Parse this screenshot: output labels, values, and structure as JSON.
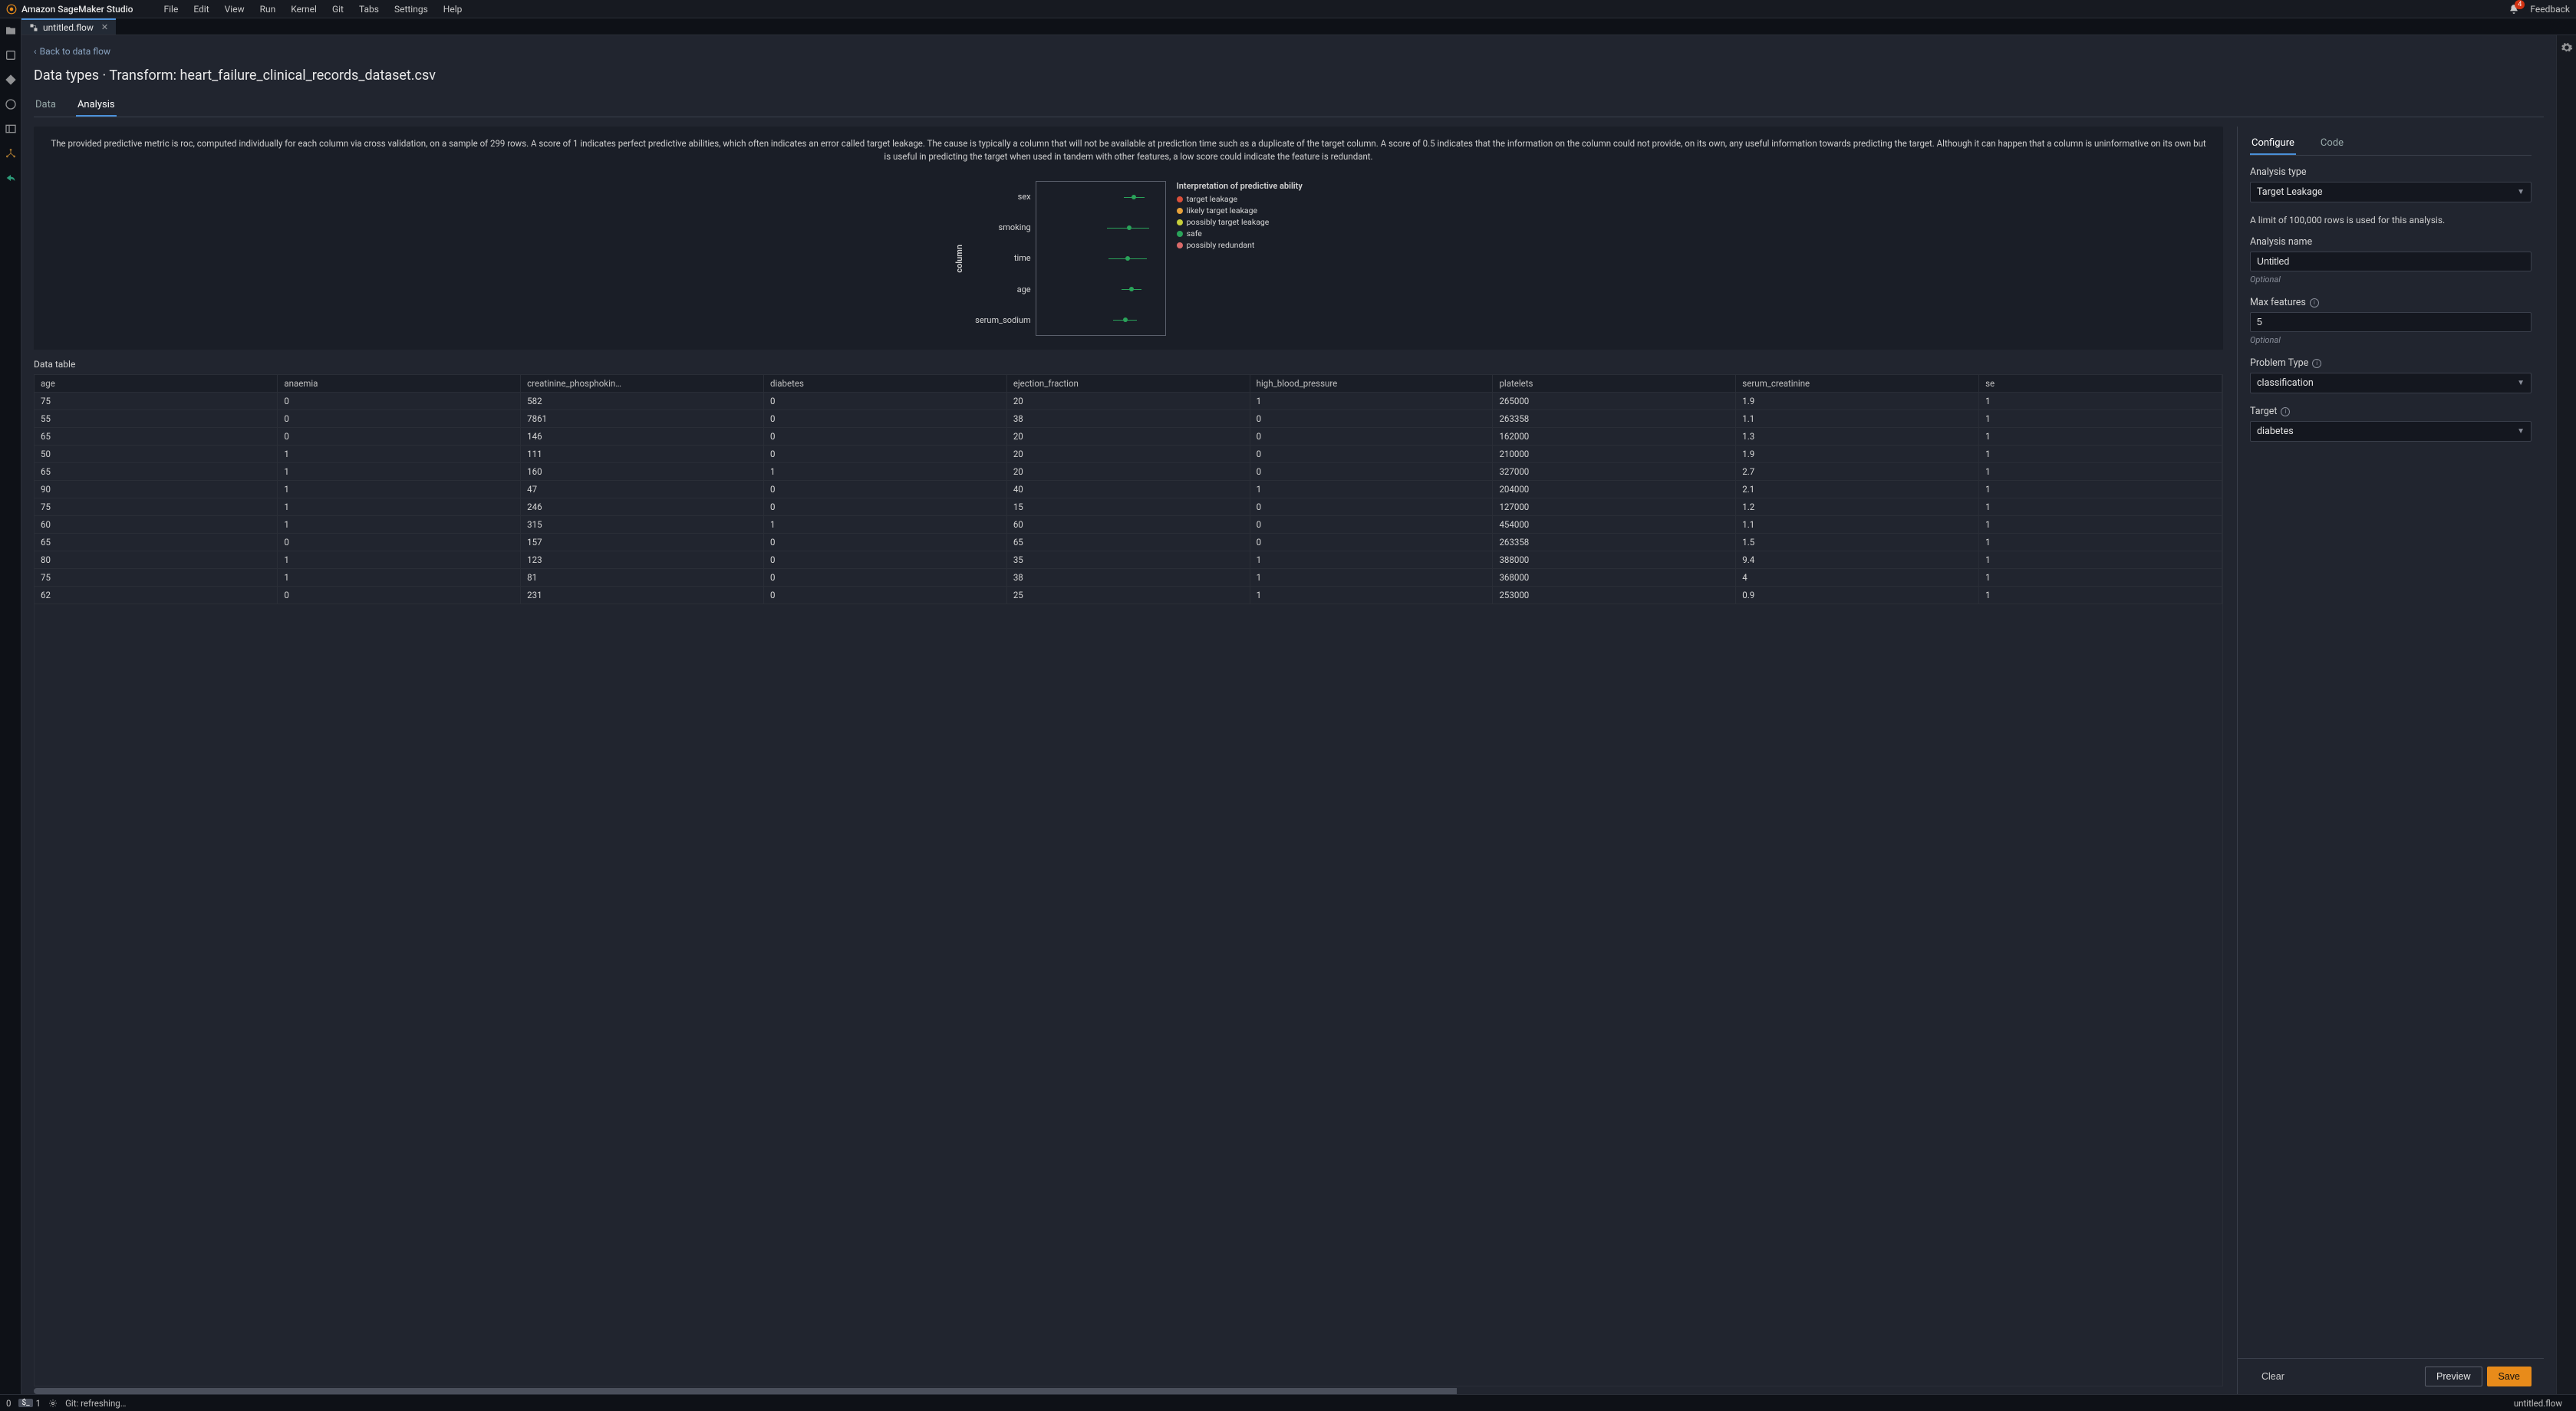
{
  "menubar": {
    "app_title": "Amazon SageMaker Studio",
    "items": [
      "File",
      "Edit",
      "View",
      "Run",
      "Kernel",
      "Git",
      "Tabs",
      "Settings",
      "Help"
    ],
    "notification_count": "4",
    "feedback": "Feedback"
  },
  "tab": {
    "title": "untitled.flow"
  },
  "back_link": "Back to data flow",
  "page": {
    "title_prefix": "Data types · Transform: ",
    "title_file": "heart_failure_clinical_records_dataset.csv"
  },
  "content_tabs": {
    "data": "Data",
    "analysis": "Analysis"
  },
  "description": "The provided predictive metric is roc, computed individually for each column via cross validation, on a sample of 299 rows. A score of 1 indicates perfect predictive abilities, which often indicates an error called target leakage. The cause is typically a column that will not be available at prediction time such as a duplicate of the target column. A score of 0.5 indicates that the information on the column could not provide, on its own, any useful information towards predicting the target. Although it can happen that a column is uninformative on its own but is useful in predicting the target when used in tandem with other features, a low score could indicate the feature is redundant.",
  "chart": {
    "y_axis_label": "column",
    "categories": [
      "sex",
      "smoking",
      "time",
      "age",
      "serum_sodium"
    ],
    "series": [
      {
        "center": 76,
        "low": 68,
        "high": 84,
        "color": "#2aa35a"
      },
      {
        "center": 72,
        "low": 55,
        "high": 88,
        "color": "#2aa35a"
      },
      {
        "center": 71,
        "low": 56,
        "high": 86,
        "color": "#2aa35a"
      },
      {
        "center": 74,
        "low": 66,
        "high": 82,
        "color": "#2aa35a"
      },
      {
        "center": 69,
        "low": 60,
        "high": 78,
        "color": "#2aa35a"
      }
    ],
    "legend_title": "Interpretation of predictive ability",
    "legend": [
      {
        "label": "target leakage",
        "color": "#d94f3a"
      },
      {
        "label": "likely target leakage",
        "color": "#e6a13a"
      },
      {
        "label": "possibly target leakage",
        "color": "#c7cf3a"
      },
      {
        "label": "safe",
        "color": "#2aa35a"
      },
      {
        "label": "possibly redundant",
        "color": "#d96a6a"
      }
    ]
  },
  "table": {
    "heading": "Data table",
    "columns": [
      "age",
      "anaemia",
      "creatinine_phosphokin…",
      "diabetes",
      "ejection_fraction",
      "high_blood_pressure",
      "platelets",
      "serum_creatinine",
      "se"
    ],
    "rows": [
      [
        "75",
        "0",
        "582",
        "0",
        "20",
        "1",
        "265000",
        "1.9",
        "1"
      ],
      [
        "55",
        "0",
        "7861",
        "0",
        "38",
        "0",
        "263358",
        "1.1",
        "1"
      ],
      [
        "65",
        "0",
        "146",
        "0",
        "20",
        "0",
        "162000",
        "1.3",
        "1"
      ],
      [
        "50",
        "1",
        "111",
        "0",
        "20",
        "0",
        "210000",
        "1.9",
        "1"
      ],
      [
        "65",
        "1",
        "160",
        "1",
        "20",
        "0",
        "327000",
        "2.7",
        "1"
      ],
      [
        "90",
        "1",
        "47",
        "0",
        "40",
        "1",
        "204000",
        "2.1",
        "1"
      ],
      [
        "75",
        "1",
        "246",
        "0",
        "15",
        "0",
        "127000",
        "1.2",
        "1"
      ],
      [
        "60",
        "1",
        "315",
        "1",
        "60",
        "0",
        "454000",
        "1.1",
        "1"
      ],
      [
        "65",
        "0",
        "157",
        "0",
        "65",
        "0",
        "263358",
        "1.5",
        "1"
      ],
      [
        "80",
        "1",
        "123",
        "0",
        "35",
        "1",
        "388000",
        "9.4",
        "1"
      ],
      [
        "75",
        "1",
        "81",
        "0",
        "38",
        "1",
        "368000",
        "4",
        "1"
      ],
      [
        "62",
        "0",
        "231",
        "0",
        "25",
        "1",
        "253000",
        "0.9",
        "1"
      ]
    ]
  },
  "config": {
    "tabs": {
      "configure": "Configure",
      "code": "Code"
    },
    "analysis_type_label": "Analysis type",
    "analysis_type_value": "Target Leakage",
    "row_limit_note": "A limit of 100,000 rows is used for this analysis.",
    "analysis_name_label": "Analysis name",
    "analysis_name_value": "Untitled",
    "optional": "Optional",
    "max_features_label": "Max features",
    "max_features_value": "5",
    "problem_type_label": "Problem Type",
    "problem_type_value": "classification",
    "target_label": "Target",
    "target_value": "diabetes",
    "clear": "Clear",
    "preview": "Preview",
    "save": "Save"
  },
  "statusbar": {
    "left_zero": "0",
    "terminals": "1",
    "git": "Git: refreshing…",
    "right_file": "untitled.flow"
  },
  "colors": {
    "bg": "#21252f",
    "panel": "#1a1e27",
    "border": "#3a3f4b",
    "accent": "#4a90d9",
    "primary_btn": "#e88b1a"
  }
}
